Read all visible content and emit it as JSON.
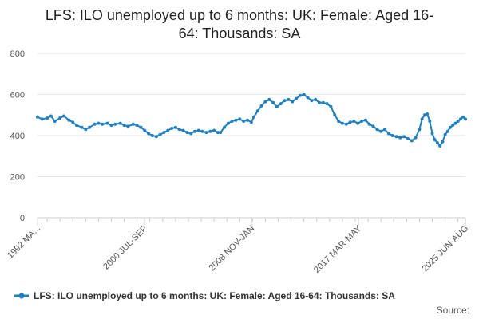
{
  "chart_data": {
    "type": "line",
    "title_lines": [
      "LFS: ILO unemployed up to 6 months: UK: Female: Aged 16-",
      "64: Thousands: SA"
    ],
    "xlabel": "",
    "ylabel": "",
    "ylim": [
      0,
      800
    ],
    "y_ticks": [
      0,
      200,
      400,
      600,
      800
    ],
    "x_tick_labels": [
      "1992 MA...",
      "2000 JUL-SEP",
      "2008 NOV-JAN",
      "2017 MAR-MAY",
      "2025 JUN-AUG"
    ],
    "x_tick_positions": [
      1992.25,
      2000.58,
      2008.92,
      2017.25,
      2025.58
    ],
    "x_range": [
      1992.25,
      2025.58
    ],
    "grid": true,
    "legend_position": "bottom",
    "series": [
      {
        "name": "LFS: ILO unemployed up to 6 months: UK: Female: Aged 16-64: Thousands: SA",
        "color": "#1f7fbf",
        "points": [
          [
            1992.25,
            490
          ],
          [
            1992.6,
            480
          ],
          [
            1993.0,
            485
          ],
          [
            1993.3,
            495
          ],
          [
            1993.6,
            470
          ],
          [
            1994.0,
            485
          ],
          [
            1994.3,
            495
          ],
          [
            1994.7,
            475
          ],
          [
            1995.0,
            465
          ],
          [
            1995.3,
            450
          ],
          [
            1995.7,
            440
          ],
          [
            1996.0,
            430
          ],
          [
            1996.3,
            440
          ],
          [
            1996.7,
            455
          ],
          [
            1997.0,
            460
          ],
          [
            1997.3,
            455
          ],
          [
            1997.7,
            460
          ],
          [
            1998.0,
            450
          ],
          [
            1998.3,
            455
          ],
          [
            1998.7,
            460
          ],
          [
            1999.0,
            450
          ],
          [
            1999.3,
            445
          ],
          [
            1999.7,
            455
          ],
          [
            2000.0,
            450
          ],
          [
            2000.3,
            440
          ],
          [
            2000.6,
            425
          ],
          [
            2000.9,
            410
          ],
          [
            2001.2,
            400
          ],
          [
            2001.5,
            395
          ],
          [
            2001.8,
            405
          ],
          [
            2002.1,
            415
          ],
          [
            2002.4,
            425
          ],
          [
            2002.7,
            435
          ],
          [
            2003.0,
            440
          ],
          [
            2003.3,
            430
          ],
          [
            2003.6,
            425
          ],
          [
            2003.9,
            415
          ],
          [
            2004.2,
            410
          ],
          [
            2004.5,
            420
          ],
          [
            2004.8,
            425
          ],
          [
            2005.1,
            420
          ],
          [
            2005.4,
            415
          ],
          [
            2005.7,
            420
          ],
          [
            2006.0,
            425
          ],
          [
            2006.3,
            415
          ],
          [
            2006.5,
            415
          ],
          [
            2006.8,
            440
          ],
          [
            2007.1,
            460
          ],
          [
            2007.4,
            470
          ],
          [
            2007.7,
            475
          ],
          [
            2008.0,
            480
          ],
          [
            2008.3,
            470
          ],
          [
            2008.6,
            475
          ],
          [
            2008.9,
            465
          ],
          [
            2009.1,
            490
          ],
          [
            2009.4,
            520
          ],
          [
            2009.7,
            545
          ],
          [
            2010.0,
            565
          ],
          [
            2010.3,
            575
          ],
          [
            2010.6,
            560
          ],
          [
            2010.9,
            540
          ],
          [
            2011.2,
            555
          ],
          [
            2011.5,
            570
          ],
          [
            2011.8,
            575
          ],
          [
            2012.1,
            565
          ],
          [
            2012.4,
            580
          ],
          [
            2012.7,
            595
          ],
          [
            2013.0,
            600
          ],
          [
            2013.3,
            585
          ],
          [
            2013.6,
            570
          ],
          [
            2013.9,
            575
          ],
          [
            2014.2,
            560
          ],
          [
            2014.5,
            560
          ],
          [
            2014.8,
            555
          ],
          [
            2015.1,
            540
          ],
          [
            2015.4,
            500
          ],
          [
            2015.7,
            470
          ],
          [
            2016.0,
            460
          ],
          [
            2016.3,
            455
          ],
          [
            2016.6,
            465
          ],
          [
            2016.9,
            470
          ],
          [
            2017.2,
            460
          ],
          [
            2017.5,
            470
          ],
          [
            2017.8,
            475
          ],
          [
            2018.1,
            455
          ],
          [
            2018.4,
            445
          ],
          [
            2018.7,
            430
          ],
          [
            2019.0,
            420
          ],
          [
            2019.3,
            430
          ],
          [
            2019.6,
            410
          ],
          [
            2019.9,
            400
          ],
          [
            2020.2,
            395
          ],
          [
            2020.5,
            390
          ],
          [
            2020.8,
            395
          ],
          [
            2021.1,
            385
          ],
          [
            2021.4,
            375
          ],
          [
            2021.7,
            390
          ],
          [
            2022.0,
            430
          ],
          [
            2022.2,
            480
          ],
          [
            2022.4,
            500
          ],
          [
            2022.6,
            505
          ],
          [
            2022.8,
            470
          ],
          [
            2023.0,
            410
          ],
          [
            2023.2,
            380
          ],
          [
            2023.4,
            365
          ],
          [
            2023.6,
            350
          ],
          [
            2023.8,
            370
          ],
          [
            2024.0,
            405
          ],
          [
            2024.2,
            420
          ],
          [
            2024.4,
            440
          ],
          [
            2024.6,
            450
          ],
          [
            2024.8,
            460
          ],
          [
            2025.0,
            470
          ],
          [
            2025.2,
            480
          ],
          [
            2025.4,
            490
          ],
          [
            2025.58,
            480
          ]
        ]
      }
    ]
  },
  "footer": {
    "source_label": "Source:"
  }
}
